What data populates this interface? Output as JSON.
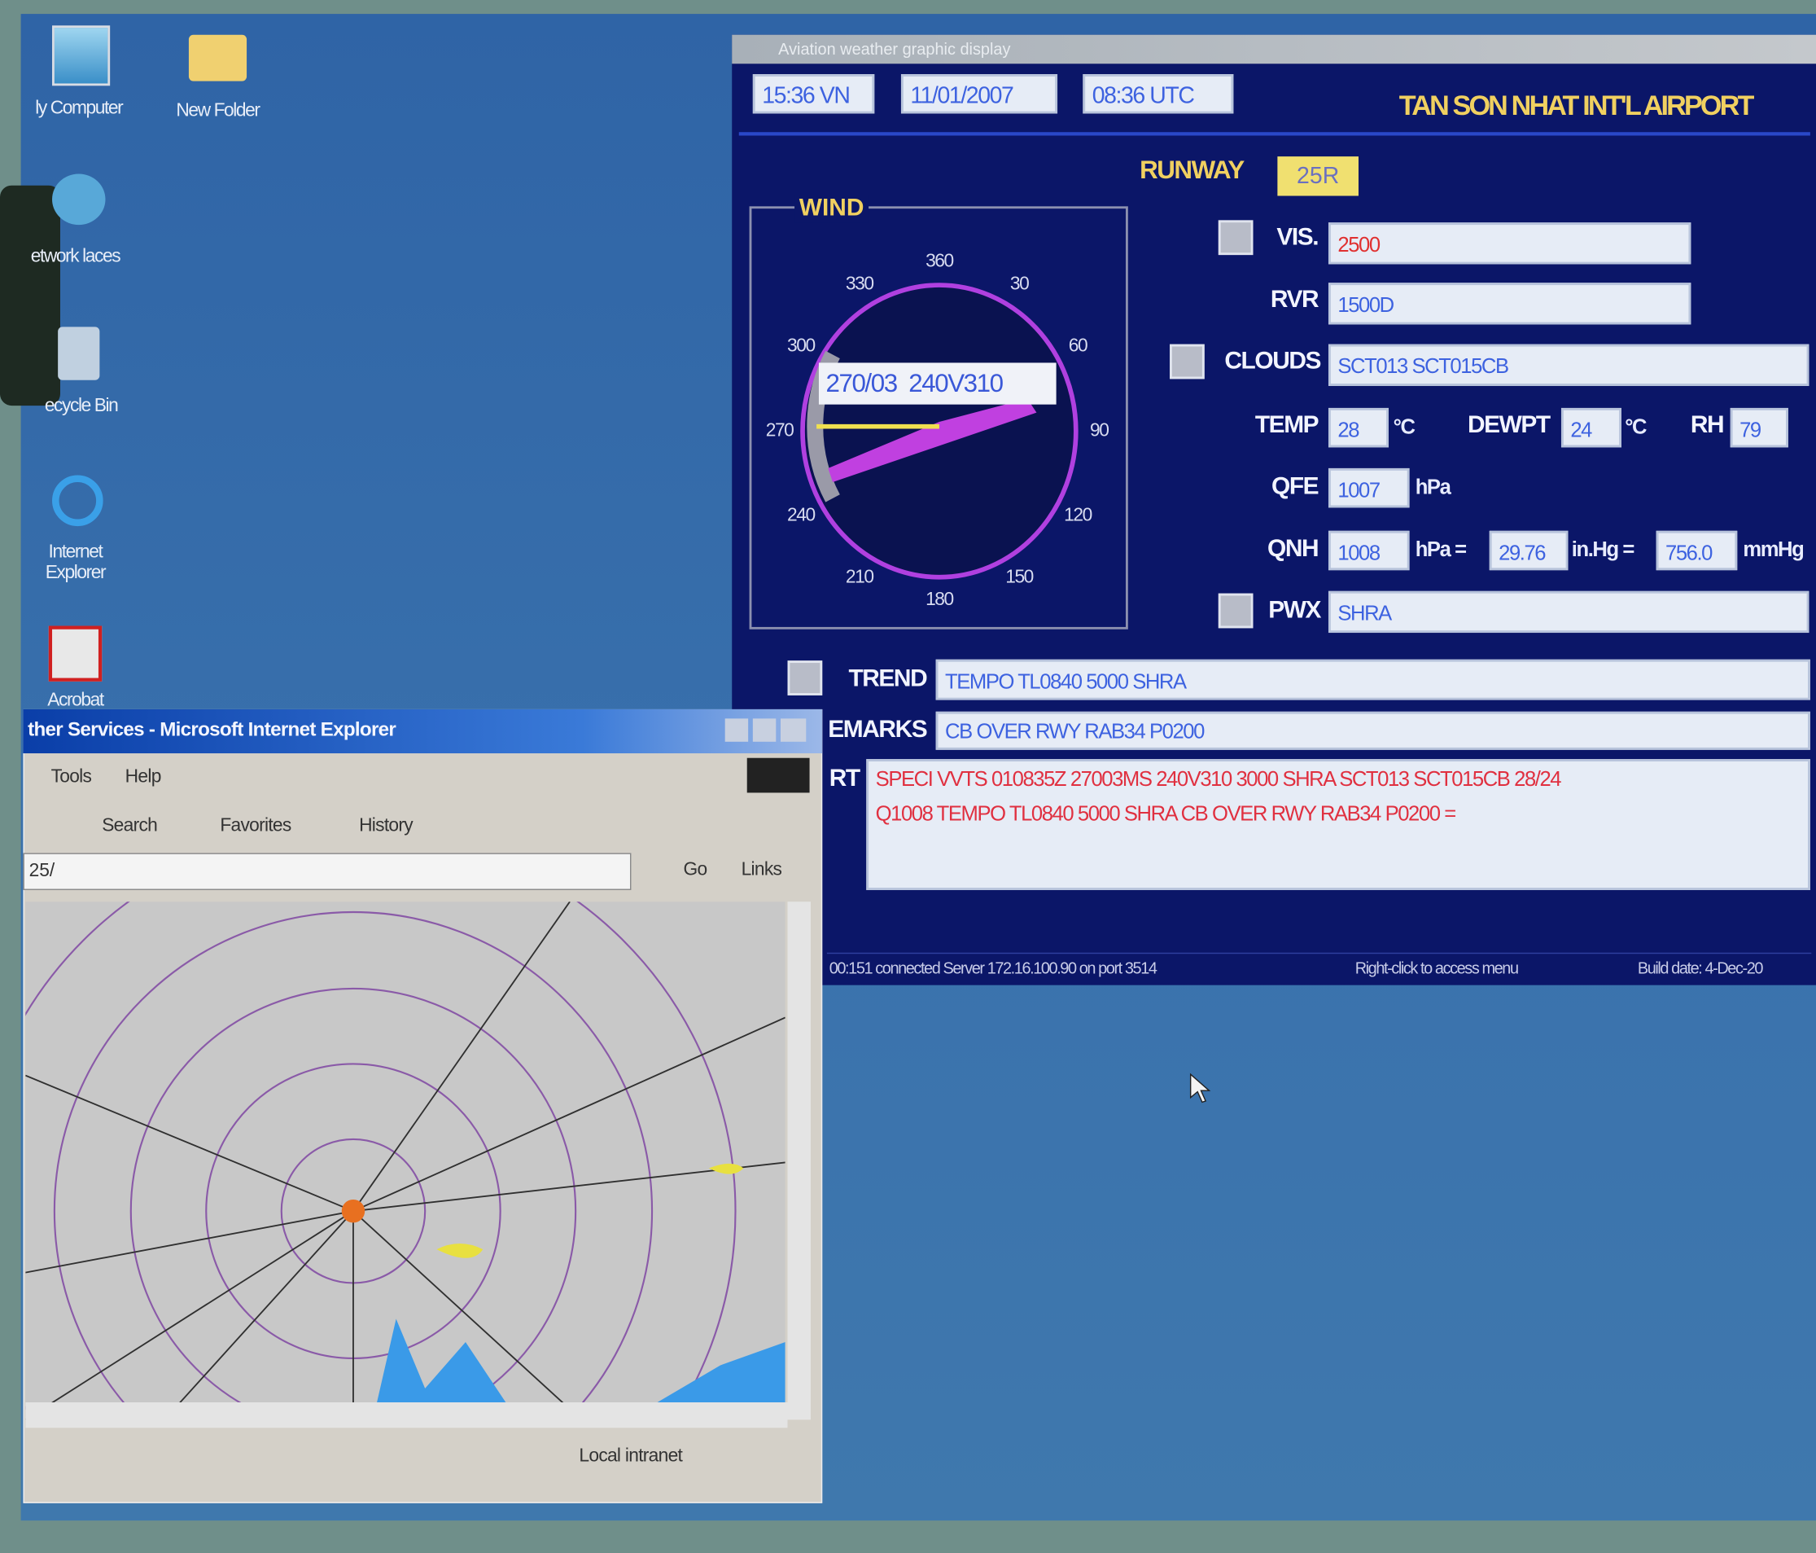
{
  "desktop": {
    "icons": [
      "ly Computer",
      "New Folder",
      "etwork laces",
      "ecycle Bin",
      "Internet Explorer",
      "Acrobat"
    ]
  },
  "app": {
    "title": "Aviation weather graphic display",
    "local_time": "15:36 VN",
    "date": "11/01/2007",
    "utc_time": "08:36 UTC",
    "airport": "TAN SON NHAT INT'L AIRPORT",
    "runway_label": "RUNWAY",
    "runway": "25R",
    "wind": {
      "label": "WIND",
      "compass": [
        "360",
        "30",
        "60",
        "90",
        "120",
        "150",
        "180",
        "210",
        "240",
        "270",
        "300",
        "330"
      ],
      "reading": "270/03  240V310"
    },
    "vis": {
      "label": "VIS.",
      "value": "2500"
    },
    "rvr": {
      "label": "RVR",
      "value": "1500D"
    },
    "clouds": {
      "label": "CLOUDS",
      "value": "SCT013 SCT015CB"
    },
    "temp": {
      "label": "TEMP",
      "value": "28",
      "unit": "°C"
    },
    "dewpt": {
      "label": "DEWPT",
      "value": "24",
      "unit": "°C"
    },
    "rh": {
      "label": "RH",
      "value": "79"
    },
    "qfe": {
      "label": "QFE",
      "value": "1007",
      "unit": "hPa"
    },
    "qnh": {
      "label": "QNH",
      "value": "1008",
      "unit": "hPa =",
      "inhg": "29.76",
      "inhg_unit": "in.Hg =",
      "mmhg": "756.0",
      "mmhg_unit": "mmHg"
    },
    "pwx": {
      "label": "PWX",
      "value": "SHRA"
    },
    "trend": {
      "label": "TREND",
      "value": "TEMPO TL0840 5000 SHRA"
    },
    "remarks": {
      "label": "EMARKS",
      "value": "CB OVER RWY RAB34 P0200"
    },
    "report": {
      "label": "RT",
      "lines": [
        "SPECI VVTS 010835Z 27003MS 240V310 3000 SHRA SCT013 SCT015CB 28/24",
        "Q1008 TEMPO TL0840 5000 SHRA  CB OVER RWY RAB34 P0200 ="
      ]
    },
    "status": [
      "00:151 connected Server 172.16.100.90 on port 3514",
      "Right-click to access menu",
      "Build date: 4-Dec-20"
    ]
  },
  "browser": {
    "title": "ther Services - Microsoft Internet Explorer",
    "menu": [
      "Tools",
      "Help"
    ],
    "toolbar": [
      "Search",
      "Favorites",
      "History"
    ],
    "address": "25/",
    "go": "Go",
    "links": "Links",
    "status": "Local intranet"
  }
}
